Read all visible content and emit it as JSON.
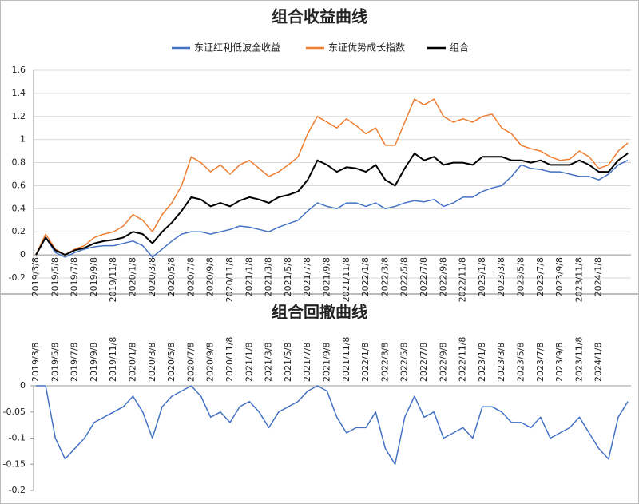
{
  "chart_data": [
    {
      "type": "line",
      "title": "组合收益曲线",
      "legend": "top",
      "grid": true,
      "categories": [
        "2019/3/8",
        null,
        "2019/5/8",
        null,
        "2019/7/8",
        null,
        "2019/9/8",
        null,
        "2019/11/8",
        null,
        "2020/1/8",
        null,
        "2020/3/8",
        null,
        "2020/5/8",
        null,
        "2020/7/8",
        null,
        "2020/9/8",
        null,
        "2020/11/8",
        null,
        "2021/1/8",
        null,
        "2021/3/8",
        null,
        "2021/5/8",
        null,
        "2021/7/8",
        null,
        "2021/9/8",
        null,
        "2021/11/8",
        null,
        "2022/1/8",
        null,
        "2022/3/8",
        null,
        "2022/5/8",
        null,
        "2022/7/8",
        null,
        "2022/9/8",
        null,
        "2022/11/8",
        null,
        "2023/1/8",
        null,
        "2023/3/8",
        null,
        "2023/5/8",
        null,
        "2023/7/8",
        null,
        "2023/9/8",
        null,
        "2023/11/8",
        null,
        "2024/1/8",
        null,
        null,
        null
      ],
      "ylim": [
        -0.2,
        1.6
      ],
      "yticks": [
        1.6,
        1.4,
        1.2,
        1,
        0.8,
        0.6,
        0.4,
        0.2,
        0,
        -0.2
      ],
      "series": [
        {
          "name": "东证红利低波全收益",
          "color": "#4472c4",
          "values": [
            0,
            0.15,
            0.02,
            -0.02,
            0.02,
            0.05,
            0.07,
            0.08,
            0.08,
            0.1,
            0.12,
            0.08,
            -0.02,
            0.05,
            0.12,
            0.18,
            0.2,
            0.2,
            0.18,
            0.2,
            0.22,
            0.25,
            0.24,
            0.22,
            0.2,
            0.24,
            0.27,
            0.3,
            0.38,
            0.45,
            0.42,
            0.4,
            0.45,
            0.45,
            0.42,
            0.45,
            0.4,
            0.42,
            0.45,
            0.47,
            0.46,
            0.48,
            0.42,
            0.45,
            0.5,
            0.5,
            0.55,
            0.58,
            0.6,
            0.68,
            0.78,
            0.75,
            0.74,
            0.72,
            0.72,
            0.7,
            0.68,
            0.68,
            0.65,
            0.7,
            0.78,
            0.82
          ]
        },
        {
          "name": "东证优势成长指数",
          "color": "#ed7d31",
          "values": [
            0,
            0.18,
            0.05,
            0,
            0.05,
            0.08,
            0.15,
            0.18,
            0.2,
            0.25,
            0.35,
            0.3,
            0.2,
            0.35,
            0.45,
            0.6,
            0.85,
            0.8,
            0.72,
            0.78,
            0.7,
            0.78,
            0.82,
            0.75,
            0.68,
            0.72,
            0.78,
            0.85,
            1.05,
            1.2,
            1.15,
            1.1,
            1.18,
            1.12,
            1.05,
            1.1,
            0.95,
            0.95,
            1.15,
            1.35,
            1.3,
            1.35,
            1.2,
            1.15,
            1.18,
            1.15,
            1.2,
            1.22,
            1.1,
            1.05,
            0.95,
            0.92,
            0.9,
            0.85,
            0.82,
            0.83,
            0.9,
            0.85,
            0.75,
            0.78,
            0.9,
            0.97
          ]
        },
        {
          "name": "组合",
          "color": "#000000",
          "values": [
            0,
            0.15,
            0.04,
            0,
            0.04,
            0.06,
            0.1,
            0.12,
            0.13,
            0.15,
            0.2,
            0.18,
            0.1,
            0.2,
            0.28,
            0.38,
            0.5,
            0.48,
            0.42,
            0.45,
            0.42,
            0.47,
            0.5,
            0.48,
            0.45,
            0.5,
            0.52,
            0.55,
            0.65,
            0.82,
            0.78,
            0.72,
            0.76,
            0.75,
            0.72,
            0.78,
            0.65,
            0.6,
            0.75,
            0.88,
            0.82,
            0.85,
            0.78,
            0.8,
            0.8,
            0.78,
            0.85,
            0.85,
            0.85,
            0.82,
            0.82,
            0.8,
            0.82,
            0.78,
            0.78,
            0.78,
            0.82,
            0.78,
            0.72,
            0.72,
            0.82,
            0.88
          ]
        }
      ]
    },
    {
      "type": "line",
      "title": "组合回撤曲线",
      "grid": false,
      "color": "#4472c4",
      "categories": [
        "2019/3/8",
        null,
        "2019/5/8",
        null,
        "2019/7/8",
        null,
        "2019/9/8",
        null,
        "2019/11/8",
        null,
        "2020/1/8",
        null,
        "2020/3/8",
        null,
        "2020/5/8",
        null,
        "2020/7/8",
        null,
        "2020/9/8",
        null,
        "2020/11/8",
        null,
        "2021/1/8",
        null,
        "2021/3/8",
        null,
        "2021/5/8",
        null,
        "2021/7/8",
        null,
        "2021/9/8",
        null,
        "2021/11/8",
        null,
        "2022/1/8",
        null,
        "2022/3/8",
        null,
        "2022/5/8",
        null,
        "2022/7/8",
        null,
        "2022/9/8",
        null,
        "2022/11/8",
        null,
        "2023/1/8",
        null,
        "2023/3/8",
        null,
        "2023/5/8",
        null,
        "2023/7/8",
        null,
        "2023/9/8",
        null,
        "2023/11/8",
        null,
        "2024/1/8",
        null,
        null,
        null
      ],
      "ylim": [
        -0.2,
        0
      ],
      "yticks": [
        0,
        -0.05,
        -0.1,
        -0.15,
        -0.2
      ],
      "values": [
        0,
        0,
        -0.1,
        -0.14,
        -0.12,
        -0.1,
        -0.07,
        -0.06,
        -0.05,
        -0.04,
        -0.02,
        -0.05,
        -0.1,
        -0.04,
        -0.02,
        -0.01,
        0,
        -0.02,
        -0.06,
        -0.05,
        -0.07,
        -0.04,
        -0.03,
        -0.05,
        -0.08,
        -0.05,
        -0.04,
        -0.03,
        -0.01,
        0,
        -0.01,
        -0.06,
        -0.09,
        -0.08,
        -0.08,
        -0.05,
        -0.12,
        -0.15,
        -0.06,
        -0.02,
        -0.06,
        -0.05,
        -0.1,
        -0.09,
        -0.08,
        -0.1,
        -0.04,
        -0.04,
        -0.05,
        -0.07,
        -0.07,
        -0.08,
        -0.06,
        -0.1,
        -0.09,
        -0.08,
        -0.06,
        -0.09,
        -0.12,
        -0.14,
        -0.06,
        -0.03
      ]
    }
  ]
}
